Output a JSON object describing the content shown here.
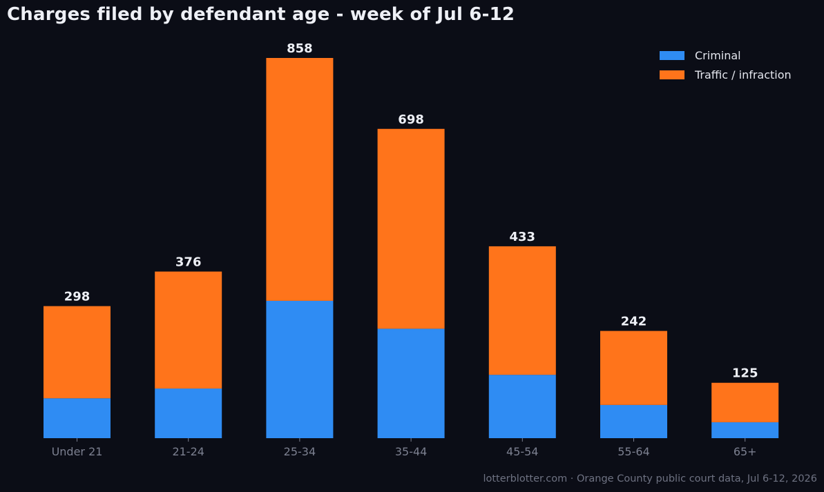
{
  "chart_data": {
    "type": "bar",
    "stacked": true,
    "title": "Charges filed by defendant age - week of Jul 6-12",
    "xlabel": "",
    "ylabel": "",
    "categories": [
      "Under 21",
      "21-24",
      "25-34",
      "35-44",
      "45-54",
      "55-64",
      "65+"
    ],
    "series": [
      {
        "name": "Criminal",
        "color": "#2f8cf3",
        "values": [
          90,
          112,
          310,
          247,
          143,
          75,
          36
        ]
      },
      {
        "name": "Traffic / infraction",
        "color": "#ff741b",
        "values": [
          208,
          264,
          548,
          451,
          290,
          167,
          89
        ]
      }
    ],
    "totals": [
      "298",
      "376",
      "858",
      "698",
      "433",
      "242",
      "125"
    ],
    "ylim": [
      0,
      900
    ],
    "grid": false,
    "legend_position": "top-right",
    "source": "lotterblotter.com  ·  Orange County public court data, Jul 6-12, 2026"
  }
}
